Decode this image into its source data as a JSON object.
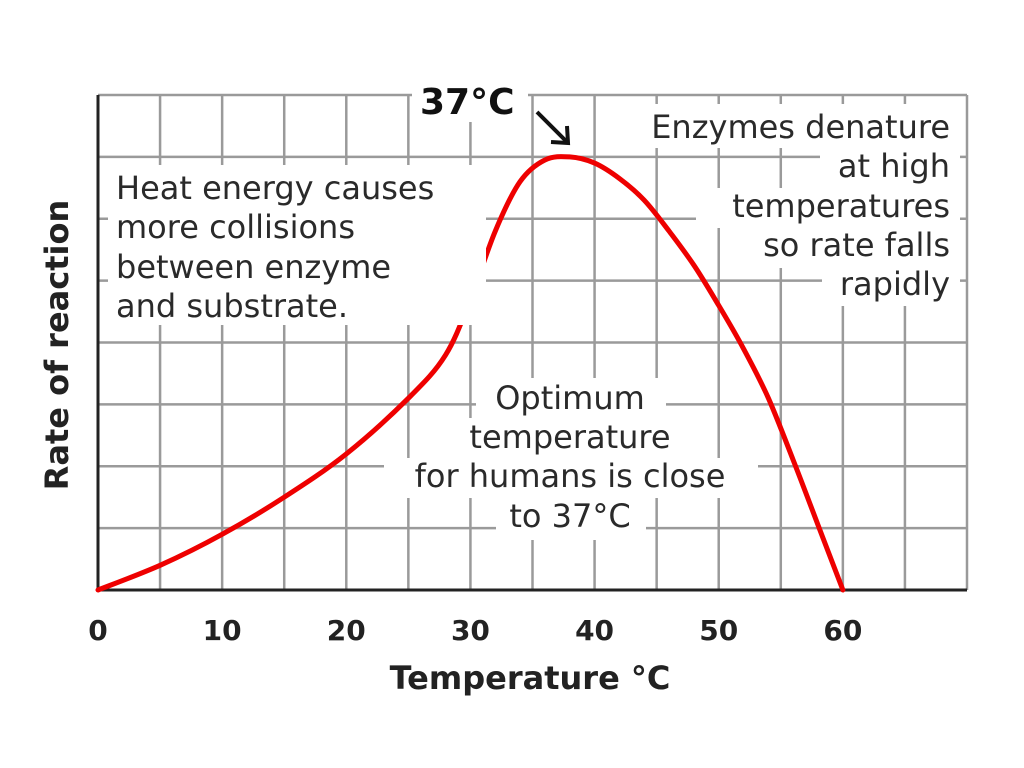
{
  "chart_data": {
    "type": "line",
    "xlabel": "Temperature °C",
    "ylabel": "Rate of reaction",
    "xlim": [
      0,
      70
    ],
    "ylim": [
      0,
      8
    ],
    "xticks": [
      0,
      10,
      20,
      30,
      40,
      50,
      60
    ],
    "grid": true,
    "series": [
      {
        "color": "#ee0000",
        "x": [
          0,
          5,
          10,
          15,
          20,
          25,
          28,
          30,
          32,
          34,
          36,
          38,
          40,
          42,
          44,
          46,
          48,
          50,
          52,
          54,
          56,
          58,
          60
        ],
        "y": [
          0,
          0.4,
          0.9,
          1.5,
          2.2,
          3.1,
          3.8,
          4.7,
          5.8,
          6.6,
          6.95,
          7.0,
          6.9,
          6.65,
          6.3,
          5.8,
          5.25,
          4.6,
          3.9,
          3.1,
          2.1,
          1.05,
          0
        ]
      }
    ],
    "annotations": {
      "peak": "37°C",
      "left": [
        "Heat energy causes",
        "more collisions",
        "between enzyme",
        "and substrate."
      ],
      "right": [
        "Enzymes denature",
        "at high",
        "temperatures",
        "so rate falls",
        "rapidly"
      ],
      "center": [
        "Optimum",
        "temperature",
        "for humans is close",
        "to 37°C"
      ]
    }
  }
}
